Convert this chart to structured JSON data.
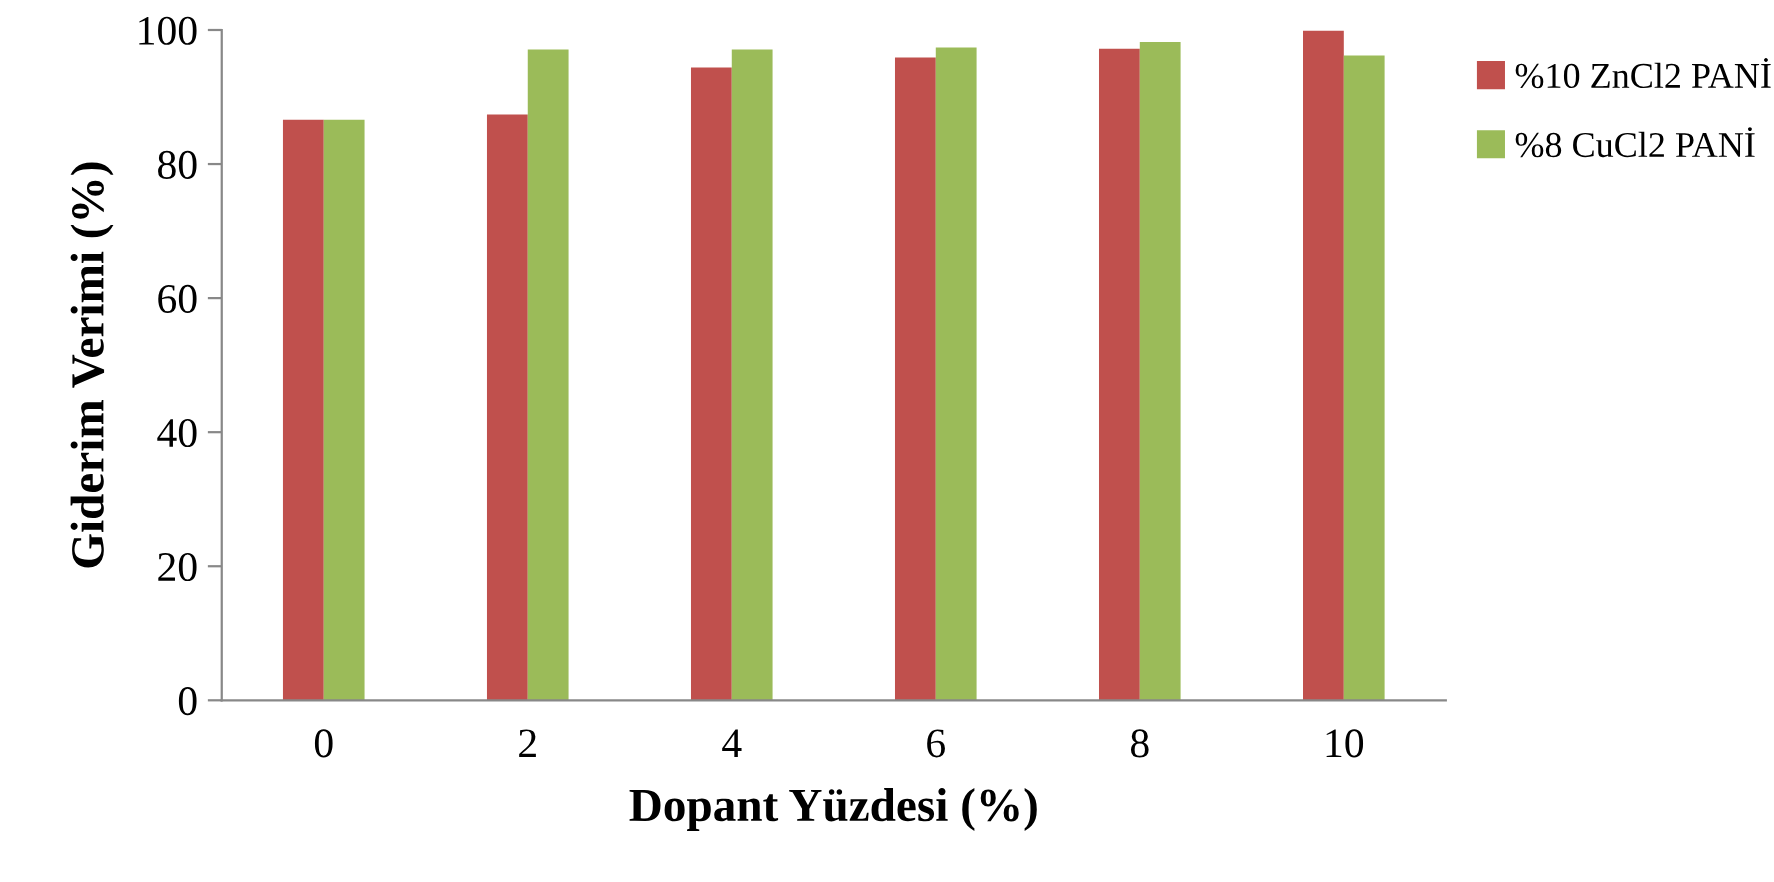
{
  "chart_data": {
    "type": "bar",
    "xlabel": "Dopant Yüzdesi (%)",
    "ylabel": "Giderim Verimi (%)",
    "categories": [
      "0",
      "2",
      "4",
      "6",
      "8",
      "10"
    ],
    "series": [
      {
        "name": "%10 ZnCl2 PANİ",
        "color": "#c0504d",
        "values": [
          86.6,
          87.4,
          94.4,
          95.9,
          97.2,
          99.9
        ]
      },
      {
        "name": "%8 CuCl2 PANİ",
        "color": "#9bbb59",
        "values": [
          86.6,
          97.1,
          97.1,
          97.4,
          98.2,
          96.2
        ]
      }
    ],
    "ylim": [
      0,
      100
    ],
    "yticks": [
      0,
      20,
      40,
      60,
      80,
      100
    ],
    "grid": false,
    "legend": "right"
  }
}
